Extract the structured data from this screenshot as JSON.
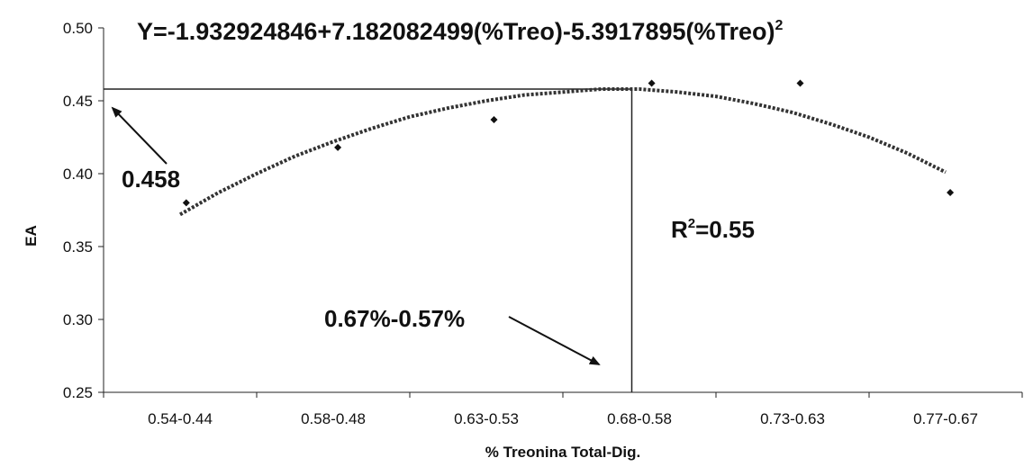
{
  "chart_data": {
    "type": "scatter",
    "title": "Y=-1.932924846+7.182082499(%Treo)-5.3917895(%Treo)",
    "title_superscript": "2",
    "xlabel": "% Treonina Total-Dig.",
    "ylabel": "EA",
    "categories": [
      "0.54-0.44",
      "0.58-0.48",
      "0.63-0.53",
      "0.68-0.58",
      "0.73-0.63",
      "0.77-0.67"
    ],
    "ylim": [
      0.25,
      0.5
    ],
    "yticks": [
      "0.25",
      "0.30",
      "0.35",
      "0.40",
      "0.45",
      "0.50"
    ],
    "grid": false,
    "legend": "none",
    "points": [
      {
        "x": 1.04,
        "y": 0.38
      },
      {
        "x": 2.03,
        "y": 0.418
      },
      {
        "x": 3.05,
        "y": 0.437
      },
      {
        "x": 4.08,
        "y": 0.462
      },
      {
        "x": 5.05,
        "y": 0.462
      },
      {
        "x": 6.03,
        "y": 0.387
      }
    ],
    "trendline": {
      "type": "polynomial",
      "style": "dotted",
      "x": [
        1.0,
        1.25,
        1.5,
        1.75,
        2.0,
        2.25,
        2.5,
        2.75,
        3.0,
        3.25,
        3.5,
        3.75,
        4.0,
        4.25,
        4.5,
        4.75,
        5.0,
        5.25,
        5.5,
        5.75,
        6.0
      ],
      "y": [
        0.372,
        0.387,
        0.4,
        0.412,
        0.422,
        0.431,
        0.439,
        0.445,
        0.45,
        0.454,
        0.456,
        0.458,
        0.458,
        0.456,
        0.453,
        0.448,
        0.442,
        0.434,
        0.425,
        0.414,
        0.401
      ]
    },
    "reference_lines": {
      "horizontal_y": 0.458,
      "vertical_x": 3.95
    },
    "annotations": {
      "peak_value": "0.458",
      "optimum_range": "0.67%-0.57%",
      "r2_prefix": "R",
      "r2_sup": "2",
      "r2_value": "=0.55"
    }
  }
}
